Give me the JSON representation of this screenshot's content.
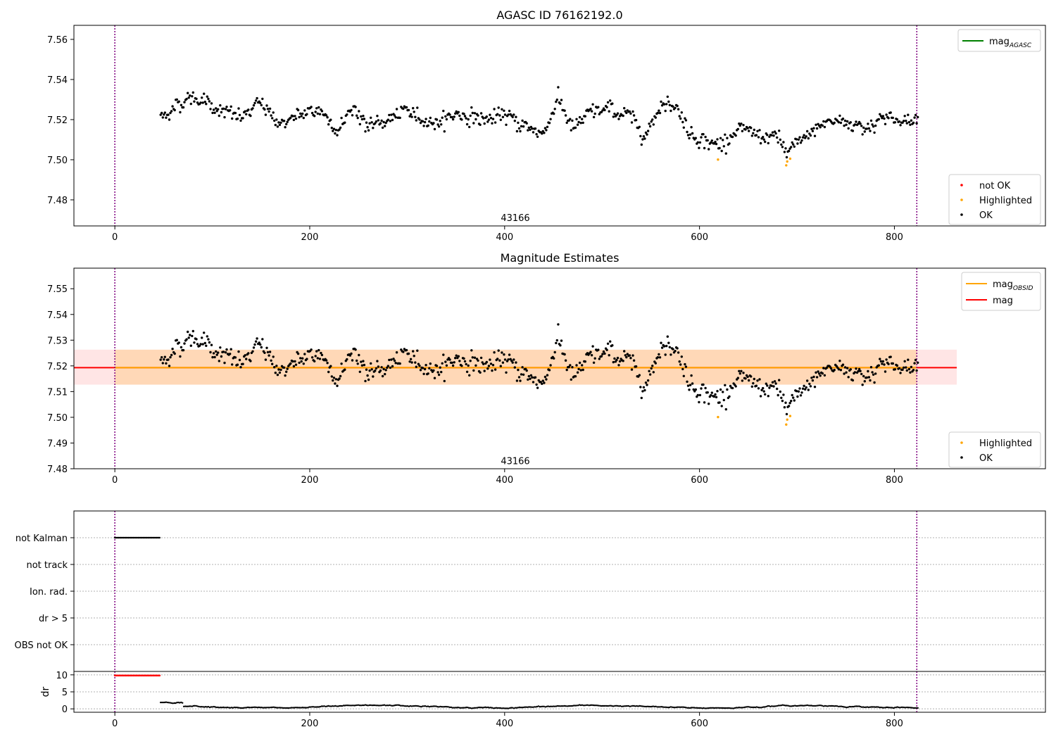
{
  "chart_data": [
    {
      "type": "scatter",
      "title": "AGASC ID 76162192.0",
      "xlim": [
        -42,
        955
      ],
      "ylim": [
        7.467,
        7.567
      ],
      "xticks": [
        0,
        200,
        400,
        600,
        800
      ],
      "yticks": [
        7.48,
        7.5,
        7.52,
        7.54,
        7.56
      ],
      "ytick_labels": [
        "7.48",
        "7.50",
        "7.52",
        "7.54",
        "7.56"
      ],
      "vlines": [
        0,
        823
      ],
      "annotation": {
        "text": "43166",
        "x": 411,
        "y": 7.4695
      },
      "line_legend": {
        "position": "upper right",
        "entries": [
          {
            "label": "mag",
            "sub": "AGASC",
            "color": "#008000"
          }
        ]
      },
      "point_legend": {
        "position": "lower right",
        "entries": [
          {
            "label": "not OK",
            "color": "#ff0000"
          },
          {
            "label": "Highlighted",
            "color": "#ffa500"
          },
          {
            "label": "OK",
            "color": "#000000"
          }
        ]
      },
      "highlighted": [
        {
          "x": 619,
          "y": 7.5001
        },
        {
          "x": 689,
          "y": 7.4972
        },
        {
          "x": 690,
          "y": 7.4991
        },
        {
          "x": 693,
          "y": 7.5005
        }
      ],
      "ok_trend": {
        "x_range": [
          47,
          824
        ],
        "n": 700,
        "x_knots": [
          47,
          75,
          90,
          110,
          130,
          150,
          170,
          190,
          210,
          230,
          245,
          260,
          280,
          300,
          330,
          350,
          380,
          400,
          420,
          440,
          455,
          470,
          490,
          510,
          530,
          545,
          560,
          575,
          590,
          610,
          620,
          640,
          660,
          680,
          690,
          710,
          730,
          750,
          770,
          790,
          810,
          824
        ],
        "y_knots": [
          7.521,
          7.531,
          7.53,
          7.524,
          7.521,
          7.528,
          7.518,
          7.522,
          7.525,
          7.515,
          7.527,
          7.516,
          7.52,
          7.524,
          7.518,
          7.523,
          7.52,
          7.522,
          7.517,
          7.513,
          7.531,
          7.515,
          7.524,
          7.525,
          7.521,
          7.512,
          7.528,
          7.528,
          7.513,
          7.509,
          7.507,
          7.515,
          7.512,
          7.511,
          7.503,
          7.512,
          7.519,
          7.519,
          7.516,
          7.522,
          7.518,
          7.52
        ],
        "spread": 0.0028
      }
    },
    {
      "type": "scatter",
      "title": "Magnitude Estimates",
      "xlim": [
        -42,
        955
      ],
      "ylim": [
        7.48,
        7.558
      ],
      "xticks": [
        0,
        200,
        400,
        600,
        800
      ],
      "yticks": [
        7.48,
        7.49,
        7.5,
        7.51,
        7.52,
        7.53,
        7.54,
        7.55
      ],
      "ytick_labels": [
        "7.48",
        "7.49",
        "7.50",
        "7.51",
        "7.52",
        "7.53",
        "7.54",
        "7.55"
      ],
      "vlines": [
        0,
        823
      ],
      "annotation": {
        "text": "43166",
        "x": 411,
        "y": 7.4818
      },
      "mag": 7.5193,
      "mag_band": [
        7.5127,
        7.5263
      ],
      "mag_band_x": [
        -42,
        864
      ],
      "mag_obsid": 7.5193,
      "mag_obsid_band": [
        7.5127,
        7.5263
      ],
      "mag_obsid_band_x": [
        0,
        823
      ],
      "line_legend": {
        "position": "upper right",
        "entries": [
          {
            "label": "mag",
            "sub": "OBSID",
            "color": "#ffa500"
          },
          {
            "label": "mag",
            "sub": "",
            "color": "#ff0000"
          }
        ]
      },
      "point_legend": {
        "position": "lower right",
        "entries": [
          {
            "label": "Highlighted",
            "color": "#ffa500"
          },
          {
            "label": "OK",
            "color": "#000000"
          }
        ]
      }
    },
    {
      "type": "scatter",
      "flag_panel": {
        "categories": [
          "not Kalman",
          "not track",
          "Ion. rad.",
          "dr > 5",
          "OBS not OK"
        ],
        "not_kalman_x_range": [
          0,
          46
        ],
        "xlim": [
          -42,
          955
        ],
        "vlines": [
          0,
          823
        ]
      },
      "dr_panel": {
        "ylabel": "dr",
        "xlim": [
          -42,
          955
        ],
        "ylim": [
          -1,
          11
        ],
        "xticks": [
          0,
          200,
          400,
          600,
          800
        ],
        "yticks": [
          0,
          5,
          10
        ],
        "clipped_value": 9.8,
        "clipped_x_range": [
          0,
          46
        ],
        "ok_x_range": [
          47,
          824
        ],
        "ok_mean": 0.6
      }
    }
  ]
}
